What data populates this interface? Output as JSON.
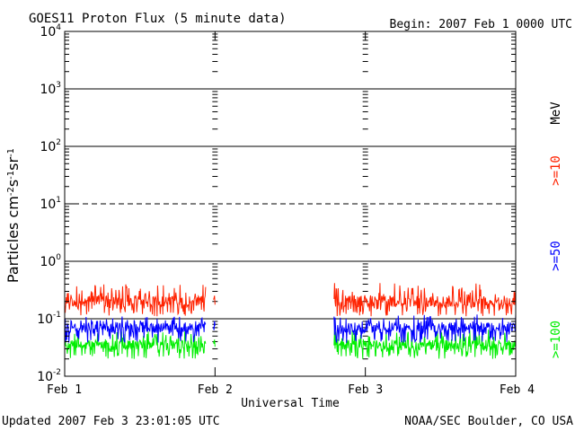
{
  "header": {
    "title": "GOES11 Proton Flux (5 minute data)",
    "begin": "Begin: 2007 Feb 1 0000 UTC"
  },
  "footer": {
    "updated": "Updated 2007 Feb  3 23:01:05 UTC",
    "credit": "NOAA/SEC Boulder, CO USA"
  },
  "colors": {
    "ge10": "#ff2200",
    "ge50": "#0000ff",
    "ge100": "#00ee00",
    "axis": "#000000"
  },
  "chart_data": {
    "type": "line",
    "title": "GOES11 Proton Flux (5 minute data)",
    "xlabel": "Universal Time",
    "ylabel_base": "Particles cm",
    "ylabel_sup1": "-2",
    "ylabel_mid1": "s",
    "ylabel_sup2": "-1",
    "ylabel_mid2": "sr",
    "ylabel_sup3": "-1",
    "y_scale": "log",
    "ylim": [
      0.01,
      10000
    ],
    "xlim": [
      "2007-02-01",
      "2007-02-04"
    ],
    "x_tick_labels": [
      "Feb 1",
      "Feb 2",
      "Feb 3",
      "Feb 4"
    ],
    "y_ticks": [
      {
        "base": "10",
        "exp": "-2"
      },
      {
        "base": "10",
        "exp": "-1"
      },
      {
        "base": "10",
        "exp": "0"
      },
      {
        "base": "10",
        "exp": "1"
      },
      {
        "base": "10",
        "exp": "2"
      },
      {
        "base": "10",
        "exp": "3"
      },
      {
        "base": "10",
        "exp": "4"
      }
    ],
    "gridlines": [
      {
        "value": 0.1,
        "style": "solid"
      },
      {
        "value": 1,
        "style": "solid"
      },
      {
        "value": 10,
        "style": "dashed"
      },
      {
        "value": 100,
        "style": "solid"
      },
      {
        "value": 1000,
        "style": "solid"
      }
    ],
    "legend_unit": "MeV",
    "series": [
      {
        "name": ">=10",
        "color": "#ff2200",
        "segments": [
          {
            "start": "2007-02-01 00:00",
            "end": "2007-02-01 22:30",
            "typical": 0.2,
            "range": [
              0.11,
              0.4
            ]
          },
          {
            "start": "2007-02-01 23:45",
            "end": "2007-02-02 00:00",
            "typical": 0.2,
            "range": [
              0.12,
              0.28
            ]
          },
          {
            "start": "2007-02-02 19:00",
            "end": "2007-02-04 00:00",
            "typical": 0.2,
            "range": [
              0.11,
              0.42
            ]
          }
        ]
      },
      {
        "name": ">=50",
        "color": "#0000ff",
        "segments": [
          {
            "start": "2007-02-01 00:00",
            "end": "2007-02-01 22:30",
            "typical": 0.07,
            "range": [
              0.038,
              0.11
            ]
          },
          {
            "start": "2007-02-01 23:45",
            "end": "2007-02-02 00:00",
            "typical": 0.07,
            "range": [
              0.045,
              0.1
            ]
          },
          {
            "start": "2007-02-02 19:00",
            "end": "2007-02-04 00:00",
            "typical": 0.07,
            "range": [
              0.038,
              0.12
            ]
          }
        ]
      },
      {
        "name": ">=100",
        "color": "#00ee00",
        "segments": [
          {
            "start": "2007-02-01 00:00",
            "end": "2007-02-01 22:30",
            "typical": 0.035,
            "range": [
              0.02,
              0.06
            ]
          },
          {
            "start": "2007-02-01 23:45",
            "end": "2007-02-02 00:00",
            "typical": 0.035,
            "range": [
              0.022,
              0.05
            ]
          },
          {
            "start": "2007-02-02 19:00",
            "end": "2007-02-04 00:00",
            "typical": 0.035,
            "range": [
              0.02,
              0.065
            ]
          }
        ]
      }
    ]
  }
}
